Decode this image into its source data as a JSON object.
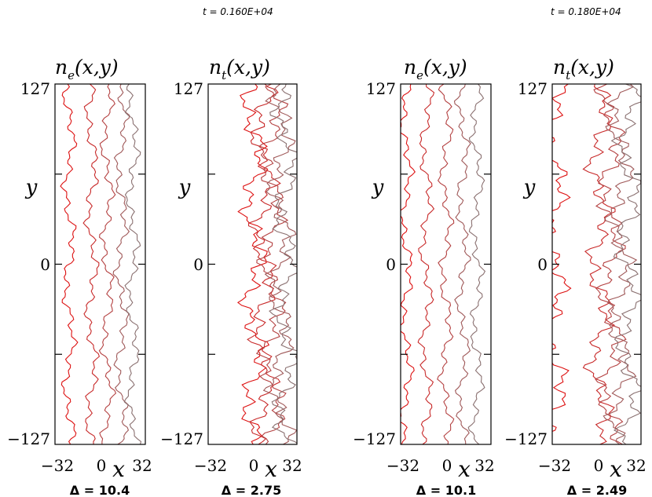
{
  "chart_data": [
    {
      "type": "contour",
      "time_label": "t = 0.160E+04",
      "title": "n_e(x,y)",
      "title_main": "n",
      "title_sub": "e",
      "title_args": "(x,y)",
      "xlabel": "x",
      "ylabel": "y",
      "xlim": [
        -32,
        32
      ],
      "ylim": [
        -127,
        127
      ],
      "x_tick_labels": [
        "−32",
        "0",
        "32"
      ],
      "y_tick_labels": [
        "127",
        "0",
        "−127"
      ],
      "contour_levels_x": [
        -22,
        -6,
        5,
        15,
        23
      ],
      "delta_label": "Δ = 10.4",
      "line_color_low": "#dd1111",
      "line_color_high": "#8a7070"
    },
    {
      "type": "contour",
      "time_label": "t = 0.160E+04",
      "title": "n_t(x,y)",
      "title_main": "n",
      "title_sub": "t",
      "title_args": "(x,y)",
      "xlabel": "x",
      "ylabel": "y",
      "xlim": [
        -32,
        32
      ],
      "ylim": [
        -127,
        127
      ],
      "x_tick_labels": [
        "−32",
        "0",
        "32"
      ],
      "y_tick_labels": [
        "127",
        "0",
        "−127"
      ],
      "contour_levels_x": [
        1,
        8,
        14,
        20,
        24
      ],
      "delta_label": "Δ = 2.75",
      "line_color_low": "#dd1111",
      "line_color_high": "#8a7070"
    },
    {
      "type": "contour",
      "time_label": "t = 0.180E+04",
      "title": "n_e(x,y)",
      "title_main": "n",
      "title_sub": "e",
      "title_args": "(x,y)",
      "xlabel": "x",
      "ylabel": "y",
      "xlim": [
        -32,
        32
      ],
      "ylim": [
        -127,
        127
      ],
      "x_tick_labels": [
        "−32",
        "0",
        "32"
      ],
      "y_tick_labels": [
        "127",
        "0",
        "−127"
      ],
      "contour_levels_x": [
        -28,
        -14,
        0,
        12,
        22
      ],
      "delta_label": "Δ = 10.1",
      "line_color_low": "#dd1111",
      "line_color_high": "#8a7070"
    },
    {
      "type": "contour",
      "time_label": "t = 0.180E+04",
      "title": "n_t(x,y)",
      "title_main": "n",
      "title_sub": "t",
      "title_args": "(x,y)",
      "xlabel": "x",
      "ylabel": "y",
      "xlim": [
        -32,
        32
      ],
      "ylim": [
        -127,
        127
      ],
      "x_tick_labels": [
        "−32",
        "0",
        "32"
      ],
      "y_tick_labels": [
        "127",
        "0",
        "−127"
      ],
      "contour_levels_x": [
        -30,
        2,
        10,
        17,
        23
      ],
      "delta_label": "Δ = 2.49",
      "line_color_low": "#dd1111",
      "line_color_high": "#8a7070"
    }
  ]
}
